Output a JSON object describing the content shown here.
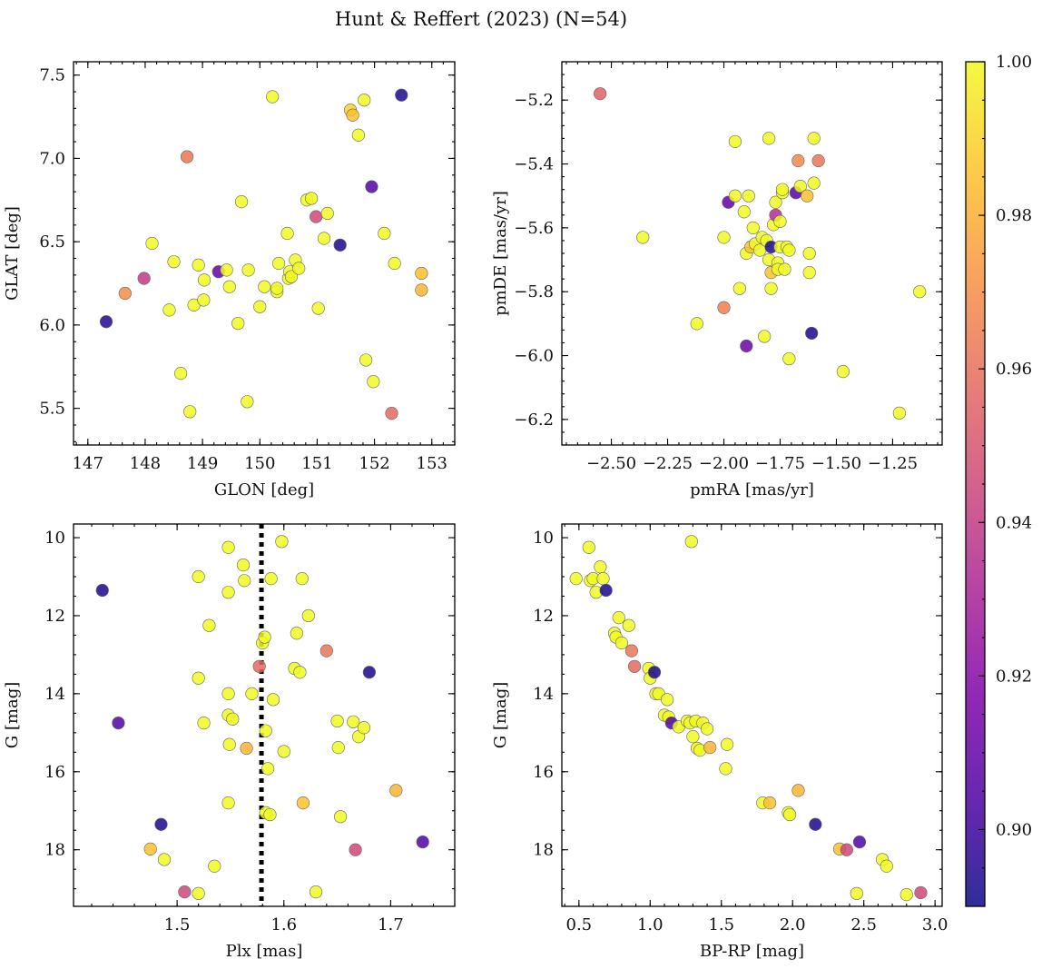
{
  "figure_title": "Hunt & Reffert (2023) (N=54)",
  "colorbar": {
    "min": 0.89,
    "max": 1.0,
    "ticks": [
      0.9,
      0.92,
      0.94,
      0.96,
      0.98,
      1.0
    ],
    "tick_labels": [
      "0.90",
      "0.92",
      "0.94",
      "0.96",
      "0.98",
      "1.00"
    ],
    "colormap": "plasma"
  },
  "chart_data": [
    {
      "type": "scatter",
      "name": "glon-glat",
      "xlabel": "GLON [deg]",
      "ylabel": "GLAT [deg]",
      "xlim": [
        146.75,
        153.4
      ],
      "ylim": [
        5.28,
        7.58
      ],
      "xticks": [
        147,
        148,
        149,
        150,
        151,
        152,
        153
      ],
      "xtick_labels": [
        "147",
        "148",
        "149",
        "150",
        "151",
        "152",
        "153"
      ],
      "yticks": [
        5.5,
        6.0,
        6.5,
        7.0,
        7.5
      ],
      "ytick_labels": [
        "5.5",
        "6.0",
        "6.5",
        "7.0",
        "7.5"
      ],
      "points": [
        [
          147.32,
          6.02,
          0.895
        ],
        [
          147.65,
          6.19,
          0.97
        ],
        [
          147.98,
          6.28,
          0.94
        ],
        [
          148.12,
          6.49,
          1
        ],
        [
          148.42,
          6.09,
          1
        ],
        [
          148.5,
          6.38,
          1
        ],
        [
          148.62,
          5.71,
          1
        ],
        [
          148.73,
          7.01,
          0.962
        ],
        [
          148.78,
          5.48,
          1
        ],
        [
          148.85,
          6.12,
          1
        ],
        [
          148.93,
          6.36,
          1
        ],
        [
          149.02,
          6.15,
          1
        ],
        [
          149.03,
          6.27,
          1
        ],
        [
          149.28,
          6.32,
          0.91
        ],
        [
          149.42,
          6.33,
          1
        ],
        [
          149.47,
          6.23,
          1
        ],
        [
          149.62,
          6.01,
          1
        ],
        [
          149.68,
          6.74,
          1
        ],
        [
          149.78,
          5.54,
          1
        ],
        [
          149.8,
          6.33,
          1
        ],
        [
          150.0,
          6.11,
          1
        ],
        [
          150.08,
          6.23,
          1
        ],
        [
          150.22,
          7.37,
          1
        ],
        [
          150.3,
          6.2,
          1
        ],
        [
          150.3,
          6.22,
          1
        ],
        [
          150.33,
          6.37,
          1
        ],
        [
          150.48,
          6.55,
          1
        ],
        [
          150.5,
          6.28,
          1
        ],
        [
          150.52,
          6.32,
          1
        ],
        [
          150.55,
          6.29,
          1
        ],
        [
          150.62,
          6.39,
          1
        ],
        [
          150.68,
          6.34,
          1
        ],
        [
          150.82,
          6.75,
          1
        ],
        [
          150.9,
          6.76,
          1
        ],
        [
          150.98,
          6.65,
          0.945
        ],
        [
          151.02,
          6.1,
          1
        ],
        [
          151.12,
          6.52,
          1
        ],
        [
          151.18,
          6.67,
          1
        ],
        [
          151.4,
          6.48,
          0.893
        ],
        [
          151.58,
          7.29,
          0.99
        ],
        [
          151.62,
          7.26,
          0.985
        ],
        [
          151.72,
          7.14,
          1
        ],
        [
          151.82,
          7.35,
          1
        ],
        [
          151.85,
          5.79,
          1
        ],
        [
          151.95,
          6.83,
          0.905
        ],
        [
          151.98,
          5.66,
          1
        ],
        [
          152.17,
          6.55,
          1
        ],
        [
          152.3,
          5.47,
          0.958
        ],
        [
          152.35,
          6.37,
          1
        ],
        [
          152.47,
          7.38,
          0.893
        ],
        [
          152.82,
          6.31,
          0.985
        ],
        [
          152.82,
          6.21,
          0.982
        ]
      ]
    },
    {
      "type": "scatter",
      "name": "pmra-pmde",
      "xlabel": "pmRA [mas/yr]",
      "ylabel": "pmDE [mas/yr]",
      "xlim": [
        -2.72,
        -1.03
      ],
      "ylim": [
        -6.28,
        -5.08
      ],
      "xticks": [
        -2.5,
        -2.25,
        -2.0,
        -1.75,
        -1.5,
        -1.25
      ],
      "xtick_labels": [
        "−2.50",
        "−2.25",
        "−2.00",
        "−1.75",
        "−1.50",
        "−1.25"
      ],
      "yticks": [
        -6.2,
        -6.0,
        -5.8,
        -5.6,
        -5.4,
        -5.2
      ],
      "ytick_labels": [
        "−6.2",
        "−6.0",
        "−5.8",
        "−5.6",
        "−5.4",
        "−5.2"
      ],
      "points": [
        [
          -2.55,
          -5.18,
          0.955
        ],
        [
          -2.36,
          -5.63,
          1
        ],
        [
          -2.12,
          -5.9,
          1
        ],
        [
          -2.0,
          -5.63,
          1
        ],
        [
          -2.0,
          -5.85,
          0.965
        ],
        [
          -1.98,
          -5.52,
          0.91
        ],
        [
          -1.95,
          -5.33,
          1
        ],
        [
          -1.95,
          -5.5,
          1
        ],
        [
          -1.93,
          -5.79,
          1
        ],
        [
          -1.91,
          -5.55,
          1
        ],
        [
          -1.9,
          -5.68,
          1
        ],
        [
          -1.9,
          -5.97,
          0.912
        ],
        [
          -1.89,
          -5.5,
          1
        ],
        [
          -1.88,
          -5.66,
          0.985
        ],
        [
          -1.87,
          -5.6,
          1
        ],
        [
          -1.86,
          -5.65,
          1
        ],
        [
          -1.84,
          -5.67,
          1
        ],
        [
          -1.83,
          -5.63,
          1
        ],
        [
          -1.82,
          -5.94,
          1
        ],
        [
          -1.81,
          -5.64,
          1
        ],
        [
          -1.8,
          -5.32,
          1
        ],
        [
          -1.8,
          -5.7,
          1
        ],
        [
          -1.79,
          -5.74,
          0.985
        ],
        [
          -1.79,
          -5.79,
          1
        ],
        [
          -1.79,
          -5.66,
          0.893
        ],
        [
          -1.78,
          -5.59,
          1
        ],
        [
          -1.77,
          -5.56,
          0.935
        ],
        [
          -1.77,
          -5.52,
          1
        ],
        [
          -1.76,
          -5.71,
          1
        ],
        [
          -1.76,
          -5.73,
          1
        ],
        [
          -1.75,
          -5.66,
          1
        ],
        [
          -1.75,
          -5.58,
          1
        ],
        [
          -1.74,
          -5.49,
          1
        ],
        [
          -1.74,
          -5.48,
          1
        ],
        [
          -1.73,
          -5.73,
          1
        ],
        [
          -1.72,
          -5.66,
          1
        ],
        [
          -1.71,
          -5.67,
          1
        ],
        [
          -1.71,
          -6.01,
          1
        ],
        [
          -1.68,
          -5.49,
          0.905
        ],
        [
          -1.67,
          -5.39,
          0.968
        ],
        [
          -1.66,
          -5.47,
          1
        ],
        [
          -1.63,
          -5.5,
          0.985
        ],
        [
          -1.62,
          -5.68,
          1
        ],
        [
          -1.62,
          -5.74,
          1
        ],
        [
          -1.61,
          -5.93,
          0.893
        ],
        [
          -1.6,
          -5.46,
          1
        ],
        [
          -1.6,
          -5.32,
          1
        ],
        [
          -1.58,
          -5.39,
          0.962
        ],
        [
          -1.47,
          -6.05,
          1
        ],
        [
          -1.22,
          -6.18,
          1
        ],
        [
          -1.13,
          -5.8,
          1
        ]
      ]
    },
    {
      "type": "scatter",
      "name": "plx-g",
      "xlabel": "Plx [mas]",
      "ylabel": "G [mag]",
      "xlim": [
        1.403,
        1.76
      ],
      "ylim": [
        19.45,
        9.65
      ],
      "invert_y": true,
      "vline": {
        "x": 1.579,
        "style": "dotted"
      },
      "xticks": [
        1.5,
        1.6,
        1.7
      ],
      "xtick_labels": [
        "1.5",
        "1.6",
        "1.7"
      ],
      "yticks": [
        10,
        12,
        14,
        16,
        18
      ],
      "ytick_labels": [
        "10",
        "12",
        "14",
        "16",
        "18"
      ],
      "points": [
        [
          1.43,
          11.35,
          0.893
        ],
        [
          1.445,
          14.75,
          0.905
        ],
        [
          1.475,
          17.98,
          0.985
        ],
        [
          1.485,
          17.35,
          0.893
        ],
        [
          1.488,
          18.25,
          1
        ],
        [
          1.507,
          19.08,
          0.945
        ],
        [
          1.52,
          11.0,
          1
        ],
        [
          1.52,
          13.6,
          1
        ],
        [
          1.52,
          19.12,
          1
        ],
        [
          1.525,
          14.75,
          1
        ],
        [
          1.53,
          12.25,
          1
        ],
        [
          1.535,
          18.42,
          1
        ],
        [
          1.548,
          10.25,
          1
        ],
        [
          1.548,
          11.4,
          1
        ],
        [
          1.549,
          15.3,
          1
        ],
        [
          1.548,
          14.0,
          1
        ],
        [
          1.548,
          16.8,
          1
        ],
        [
          1.548,
          14.55,
          1
        ],
        [
          1.552,
          14.65,
          1
        ],
        [
          1.562,
          10.7,
          1
        ],
        [
          1.563,
          11.1,
          1
        ],
        [
          1.565,
          15.4,
          0.982
        ],
        [
          1.57,
          14.0,
          1
        ],
        [
          1.577,
          13.3,
          0.958
        ],
        [
          1.58,
          12.7,
          1
        ],
        [
          1.582,
          12.55,
          1
        ],
        [
          1.583,
          17.05,
          1
        ],
        [
          1.583,
          14.95,
          1
        ],
        [
          1.585,
          15.92,
          1
        ],
        [
          1.587,
          17.1,
          1
        ],
        [
          1.588,
          11.05,
          1
        ],
        [
          1.59,
          14.15,
          1
        ],
        [
          1.598,
          10.1,
          1
        ],
        [
          1.6,
          15.48,
          1
        ],
        [
          1.61,
          13.35,
          1
        ],
        [
          1.612,
          12.45,
          1
        ],
        [
          1.615,
          13.45,
          1
        ],
        [
          1.617,
          11.05,
          1
        ],
        [
          1.618,
          16.8,
          0.985
        ],
        [
          1.623,
          12.0,
          1
        ],
        [
          1.63,
          19.08,
          1
        ],
        [
          1.64,
          12.9,
          0.962
        ],
        [
          1.65,
          14.7,
          1
        ],
        [
          1.651,
          15.38,
          1
        ],
        [
          1.653,
          17.15,
          1
        ],
        [
          1.665,
          14.72,
          1
        ],
        [
          1.667,
          18.0,
          0.945
        ],
        [
          1.67,
          15.1,
          1
        ],
        [
          1.675,
          14.87,
          1
        ],
        [
          1.68,
          13.45,
          0.893
        ],
        [
          1.705,
          16.48,
          0.982
        ],
        [
          1.73,
          17.8,
          0.905
        ]
      ]
    },
    {
      "type": "scatter",
      "name": "bprp-g",
      "xlabel": "BP-RP [mag]",
      "ylabel": "G [mag]",
      "xlim": [
        0.38,
        3.05
      ],
      "ylim": [
        19.45,
        9.65
      ],
      "invert_y": true,
      "xticks": [
        0.5,
        1.0,
        1.5,
        2.0,
        2.5,
        3.0
      ],
      "xtick_labels": [
        "0.5",
        "1.0",
        "1.5",
        "2.0",
        "2.5",
        "3.0"
      ],
      "yticks": [
        10,
        12,
        14,
        16,
        18
      ],
      "ytick_labels": [
        "10",
        "12",
        "14",
        "16",
        "18"
      ],
      "points": [
        [
          0.48,
          11.05,
          1
        ],
        [
          0.57,
          10.25,
          1
        ],
        [
          0.58,
          11.1,
          1
        ],
        [
          0.6,
          11.05,
          1
        ],
        [
          0.62,
          11.4,
          1
        ],
        [
          0.65,
          10.75,
          1
        ],
        [
          0.67,
          11.05,
          1
        ],
        [
          0.69,
          11.35,
          0.893
        ],
        [
          0.75,
          12.45,
          1
        ],
        [
          0.76,
          12.55,
          1
        ],
        [
          0.78,
          12.05,
          1
        ],
        [
          0.8,
          12.7,
          1
        ],
        [
          0.85,
          12.25,
          1
        ],
        [
          0.87,
          12.9,
          0.962
        ],
        [
          0.89,
          13.3,
          0.958
        ],
        [
          0.99,
          13.35,
          1
        ],
        [
          1.0,
          13.6,
          1
        ],
        [
          1.03,
          13.45,
          0.893
        ],
        [
          1.04,
          14.0,
          1
        ],
        [
          1.06,
          14.0,
          1
        ],
        [
          1.1,
          14.55,
          1
        ],
        [
          1.12,
          14.15,
          1
        ],
        [
          1.13,
          14.6,
          1
        ],
        [
          1.15,
          14.75,
          0.905
        ],
        [
          1.2,
          14.85,
          1
        ],
        [
          1.26,
          14.7,
          1
        ],
        [
          1.28,
          14.75,
          1
        ],
        [
          1.29,
          10.1,
          1
        ],
        [
          1.3,
          15.1,
          1
        ],
        [
          1.32,
          14.7,
          1
        ],
        [
          1.33,
          15.4,
          1
        ],
        [
          1.35,
          15.45,
          1
        ],
        [
          1.37,
          14.75,
          1
        ],
        [
          1.4,
          14.9,
          1
        ],
        [
          1.42,
          15.38,
          0.982
        ],
        [
          1.53,
          15.92,
          1
        ],
        [
          1.54,
          15.3,
          1
        ],
        [
          1.79,
          16.8,
          1
        ],
        [
          1.84,
          16.8,
          0.985
        ],
        [
          1.97,
          17.05,
          1
        ],
        [
          1.98,
          17.1,
          1
        ],
        [
          2.04,
          16.48,
          0.982
        ],
        [
          2.16,
          17.35,
          0.893
        ],
        [
          2.33,
          17.98,
          0.985
        ],
        [
          2.38,
          18.0,
          0.945
        ],
        [
          2.47,
          17.8,
          0.905
        ],
        [
          2.45,
          19.12,
          1
        ],
        [
          2.63,
          18.25,
          1
        ],
        [
          2.66,
          18.42,
          1
        ],
        [
          2.8,
          19.15,
          1
        ],
        [
          2.9,
          19.1,
          0.945
        ]
      ]
    }
  ]
}
